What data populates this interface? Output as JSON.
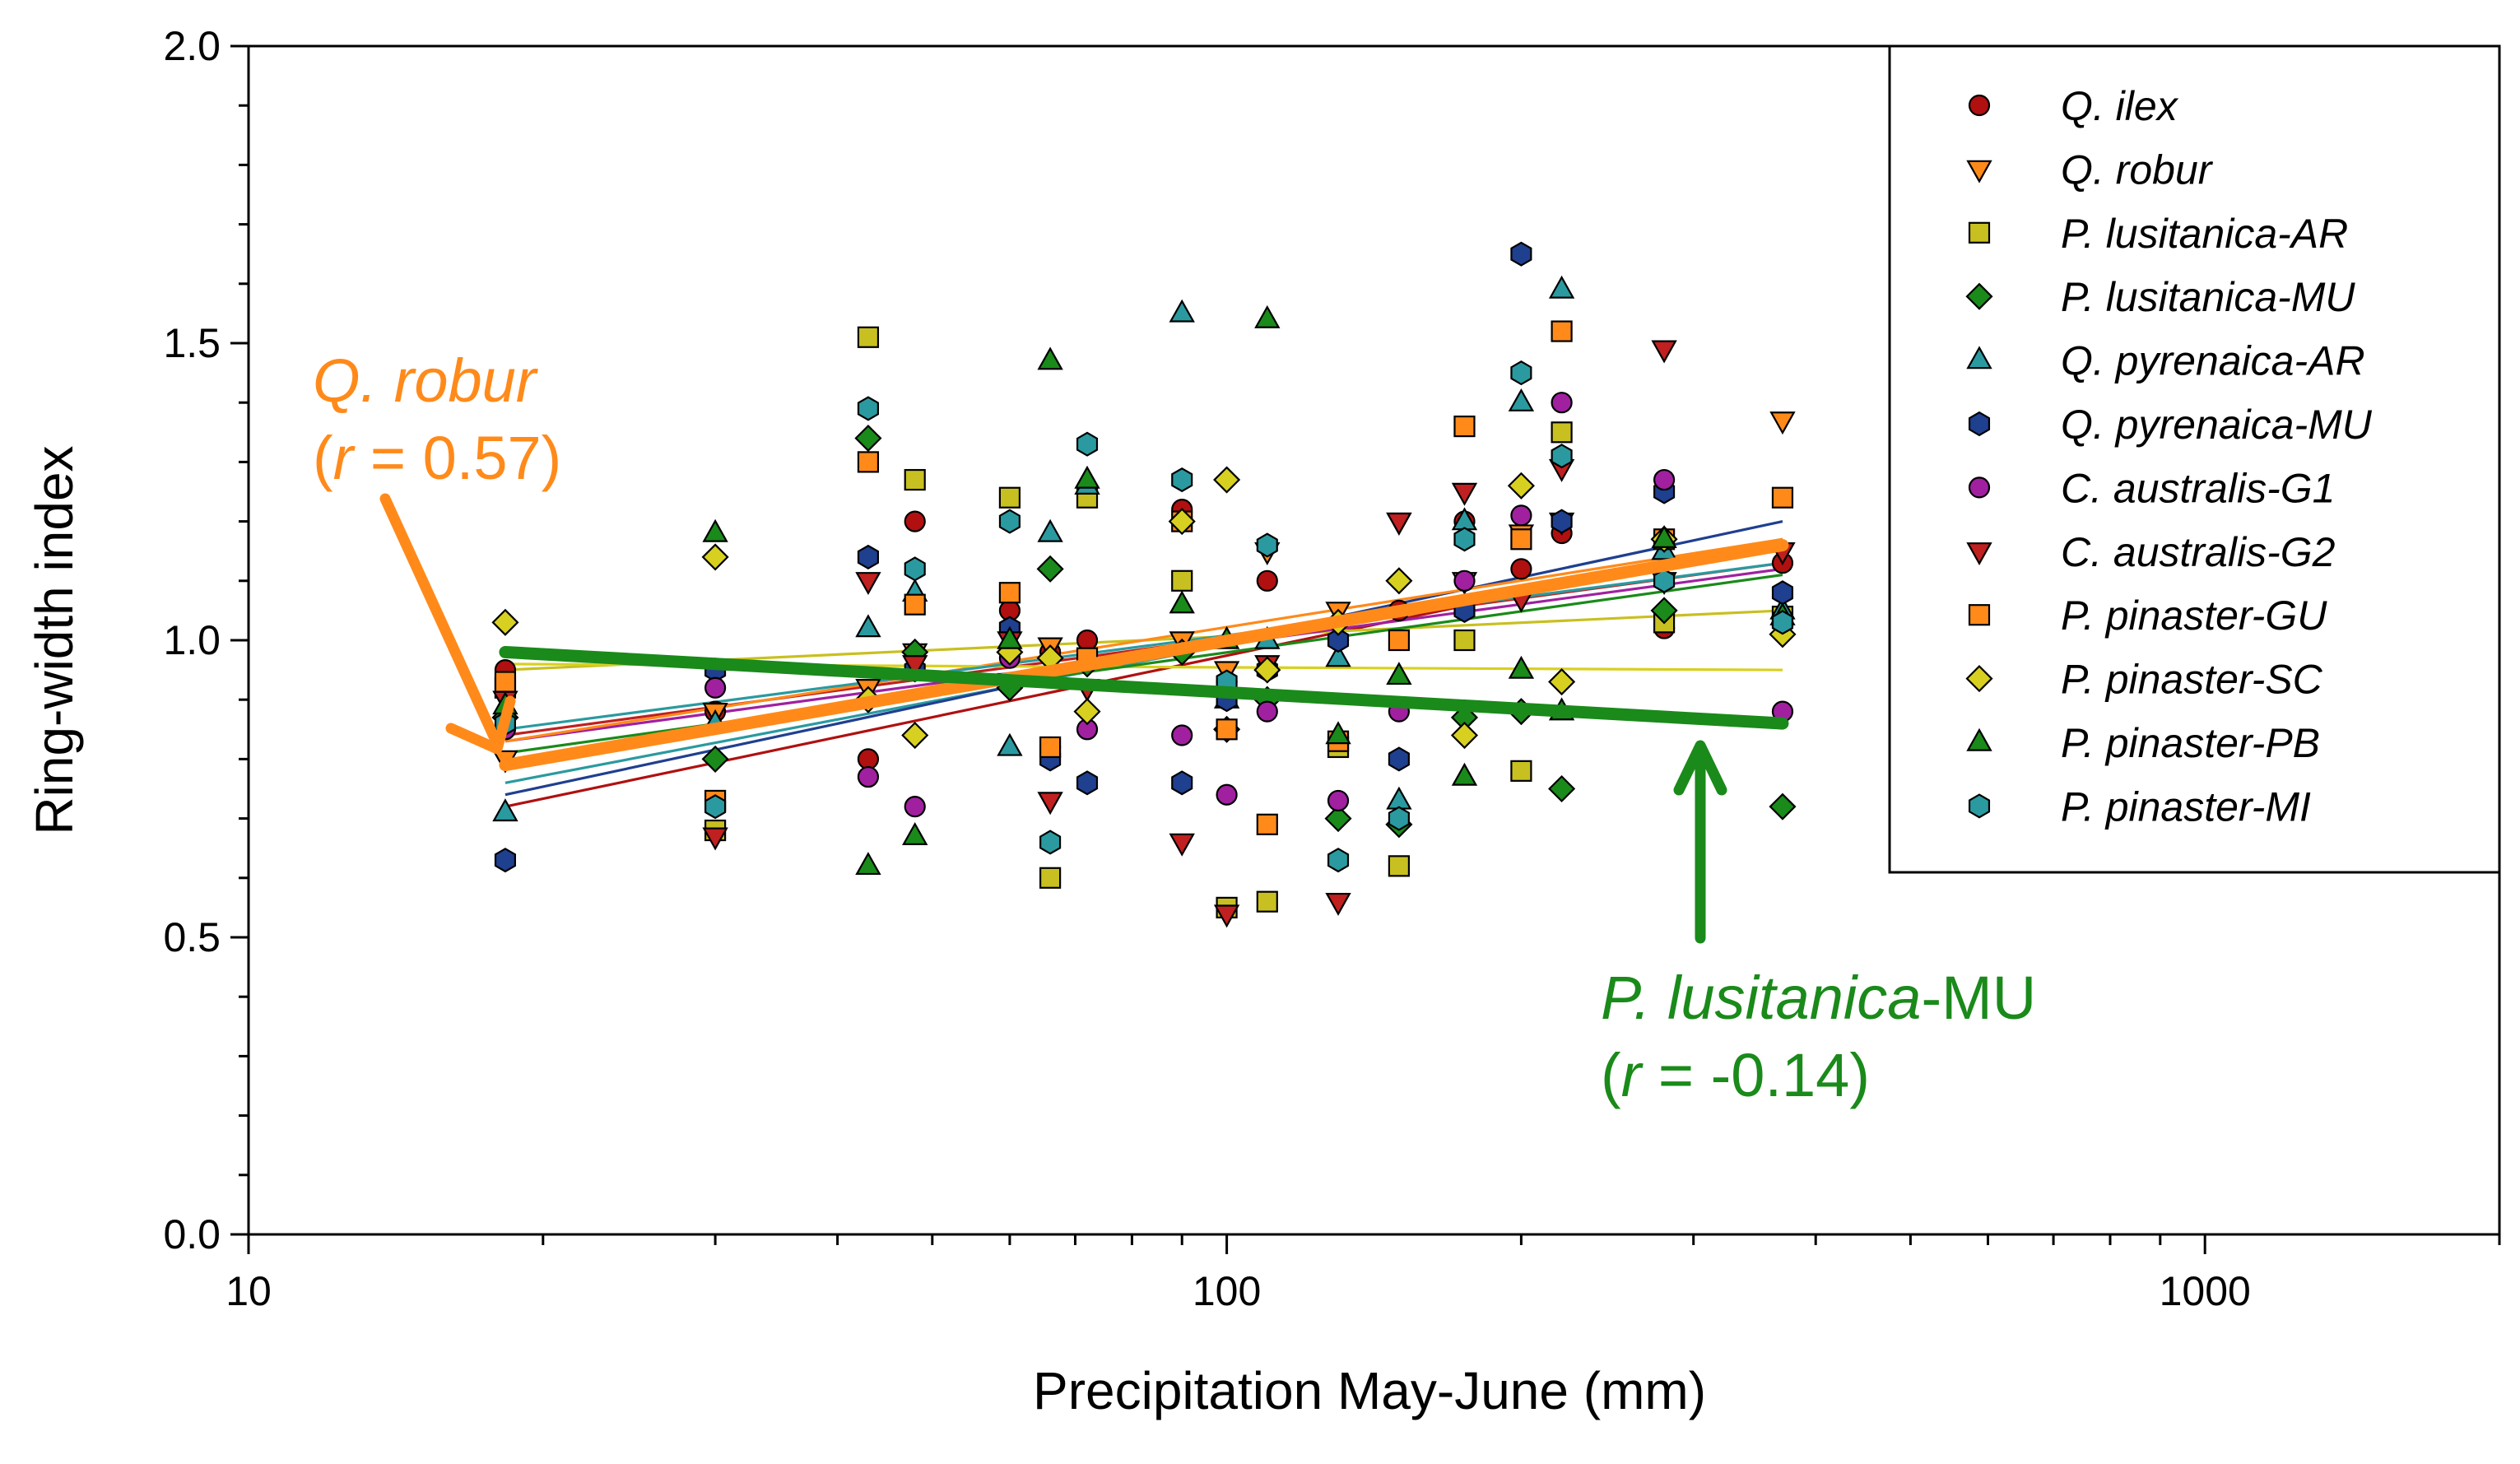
{
  "chart_data": {
    "type": "scatter",
    "xlabel": "Precipitation May-June (mm)",
    "ylabel": "Ring-width index",
    "x_scale": "log",
    "xlim": [
      10,
      2000
    ],
    "ylim": [
      0.0,
      2.0
    ],
    "x_ticks": [
      10,
      100,
      1000
    ],
    "x_tick_labels": [
      "10",
      "100",
      "1000"
    ],
    "y_ticks": [
      0.0,
      0.5,
      1.0,
      1.5,
      2.0
    ],
    "y_tick_labels": [
      "0.0",
      "0.5",
      "1.0",
      "1.5",
      "2.0"
    ],
    "x_years": [
      18.3,
      30,
      43,
      48,
      60,
      66,
      72,
      90,
      100,
      110,
      130,
      150,
      175,
      200,
      220,
      280,
      370
    ],
    "legend_position": "top-right",
    "series": [
      {
        "name": "Q. ilex",
        "marker": "circle",
        "color": "#b01010",
        "values": [
          0.95,
          0.88,
          0.8,
          1.2,
          1.05,
          0.98,
          1.0,
          1.22,
          0.93,
          1.1,
          1.0,
          1.05,
          1.2,
          1.12,
          1.18,
          1.02,
          1.13
        ],
        "fit": [
          0.72,
          1.17
        ]
      },
      {
        "name": "Q. robur",
        "marker": "triangle-down",
        "color": "#ff8a1a",
        "values": [
          0.8,
          0.88,
          0.92,
          0.98,
          0.93,
          0.99,
          0.92,
          1.0,
          0.95,
          1.15,
          1.05,
          1.2,
          1.1,
          1.18,
          1.2,
          1.1,
          1.37
        ],
        "fit": [
          0.79,
          1.16
        ]
      },
      {
        "name": "P. lusitanica-AR",
        "marker": "square",
        "color": "#c8c020",
        "values": [
          0.92,
          0.68,
          1.51,
          1.27,
          1.24,
          0.6,
          1.24,
          1.1,
          0.55,
          0.56,
          0.82,
          0.62,
          1.0,
          0.78,
          1.35,
          1.03,
          1.04
        ],
        "fit": [
          0.95,
          1.05
        ]
      },
      {
        "name": "P. lusitanica-MU",
        "marker": "diamond",
        "color": "#1a8a1a",
        "values": [
          0.87,
          0.8,
          1.34,
          0.98,
          0.92,
          1.12,
          0.96,
          0.98,
          0.85,
          0.9,
          0.7,
          0.69,
          0.87,
          0.88,
          0.75,
          1.05,
          0.72
        ],
        "fit": [
          0.98,
          0.86
        ]
      },
      {
        "name": "Q. pyrenaica-AR",
        "marker": "triangle-up",
        "color": "#2a9aa0",
        "values": [
          0.71,
          0.86,
          1.02,
          1.08,
          0.82,
          1.18,
          1.26,
          1.55,
          0.9,
          1.0,
          0.97,
          0.73,
          1.2,
          1.4,
          1.59,
          1.15,
          1.05
        ],
        "fit": [
          0.76,
          1.17
        ]
      },
      {
        "name": "Q. pyrenaica-MU",
        "marker": "hexagon",
        "color": "#1f3f8f",
        "values": [
          0.63,
          0.95,
          1.14,
          0.95,
          1.02,
          0.8,
          0.76,
          0.76,
          0.9,
          0.95,
          1.0,
          0.8,
          1.05,
          1.65,
          1.2,
          1.25,
          1.08
        ],
        "fit": [
          0.74,
          1.2
        ]
      },
      {
        "name": "C. australis-G1",
        "marker": "circle",
        "color": "#a020a0",
        "values": [
          0.85,
          0.92,
          0.77,
          0.72,
          0.97,
          0.82,
          0.85,
          0.84,
          0.74,
          0.88,
          0.73,
          0.88,
          1.1,
          1.21,
          1.4,
          1.27,
          0.88
        ],
        "fit": [
          0.83,
          1.12
        ]
      },
      {
        "name": "C. australis-G2",
        "marker": "triangle-down",
        "color": "#c02020",
        "values": [
          0.9,
          0.67,
          1.1,
          0.96,
          1.0,
          0.73,
          0.92,
          0.66,
          0.54,
          0.96,
          0.56,
          1.2,
          1.25,
          1.07,
          1.29,
          1.49,
          1.15
        ],
        "fit": [
          0.84,
          1.13
        ]
      },
      {
        "name": "P. pinaster-GU",
        "marker": "square",
        "color": "#ff8a1a",
        "values": [
          0.93,
          0.73,
          1.3,
          1.06,
          1.08,
          0.82,
          0.97,
          1.2,
          0.85,
          0.69,
          0.83,
          1.0,
          1.36,
          1.17,
          1.52,
          1.17,
          1.24
        ],
        "fit": [
          0.83,
          1.17
        ]
      },
      {
        "name": "P. pinaster-SC",
        "marker": "diamond",
        "color": "#d8d020",
        "values": [
          1.03,
          1.14,
          0.9,
          0.84,
          0.98,
          0.97,
          0.88,
          1.2,
          1.27,
          0.95,
          1.03,
          1.1,
          0.84,
          1.26,
          0.93,
          1.17,
          1.01
        ],
        "fit": [
          0.96,
          0.95
        ]
      },
      {
        "name": "P. pinaster-PB",
        "marker": "triangle-up",
        "color": "#1a8a1a",
        "values": [
          0.89,
          1.18,
          0.62,
          0.67,
          1.0,
          1.47,
          1.27,
          1.06,
          1.0,
          1.54,
          0.84,
          0.94,
          0.77,
          0.95,
          0.88,
          1.17,
          1.04
        ],
        "fit": [
          0.81,
          1.11
        ]
      },
      {
        "name": "P. pinaster-MI",
        "marker": "hexagon",
        "color": "#2a9aa0",
        "values": [
          0.86,
          0.72,
          1.39,
          1.12,
          1.2,
          0.66,
          1.33,
          1.27,
          0.93,
          1.16,
          0.63,
          0.7,
          1.17,
          1.45,
          1.31,
          1.1,
          1.03
        ],
        "fit": [
          0.85,
          1.13
        ]
      }
    ],
    "annotations": [
      {
        "species": "Q. robur",
        "r_prefix": "(",
        "r_var": "r",
        "r_value": " = 0.57)",
        "color": "#ff8a1a",
        "target_species": "Q. robur",
        "target_end": "start"
      },
      {
        "species": "P. lusitanica",
        "suffix": "-MU",
        "r_prefix": "(",
        "r_var": "r",
        "r_value": " = -0.14)",
        "color": "#1a8a1a",
        "target_species": "P. lusitanica-MU",
        "target_end": "end"
      }
    ]
  }
}
